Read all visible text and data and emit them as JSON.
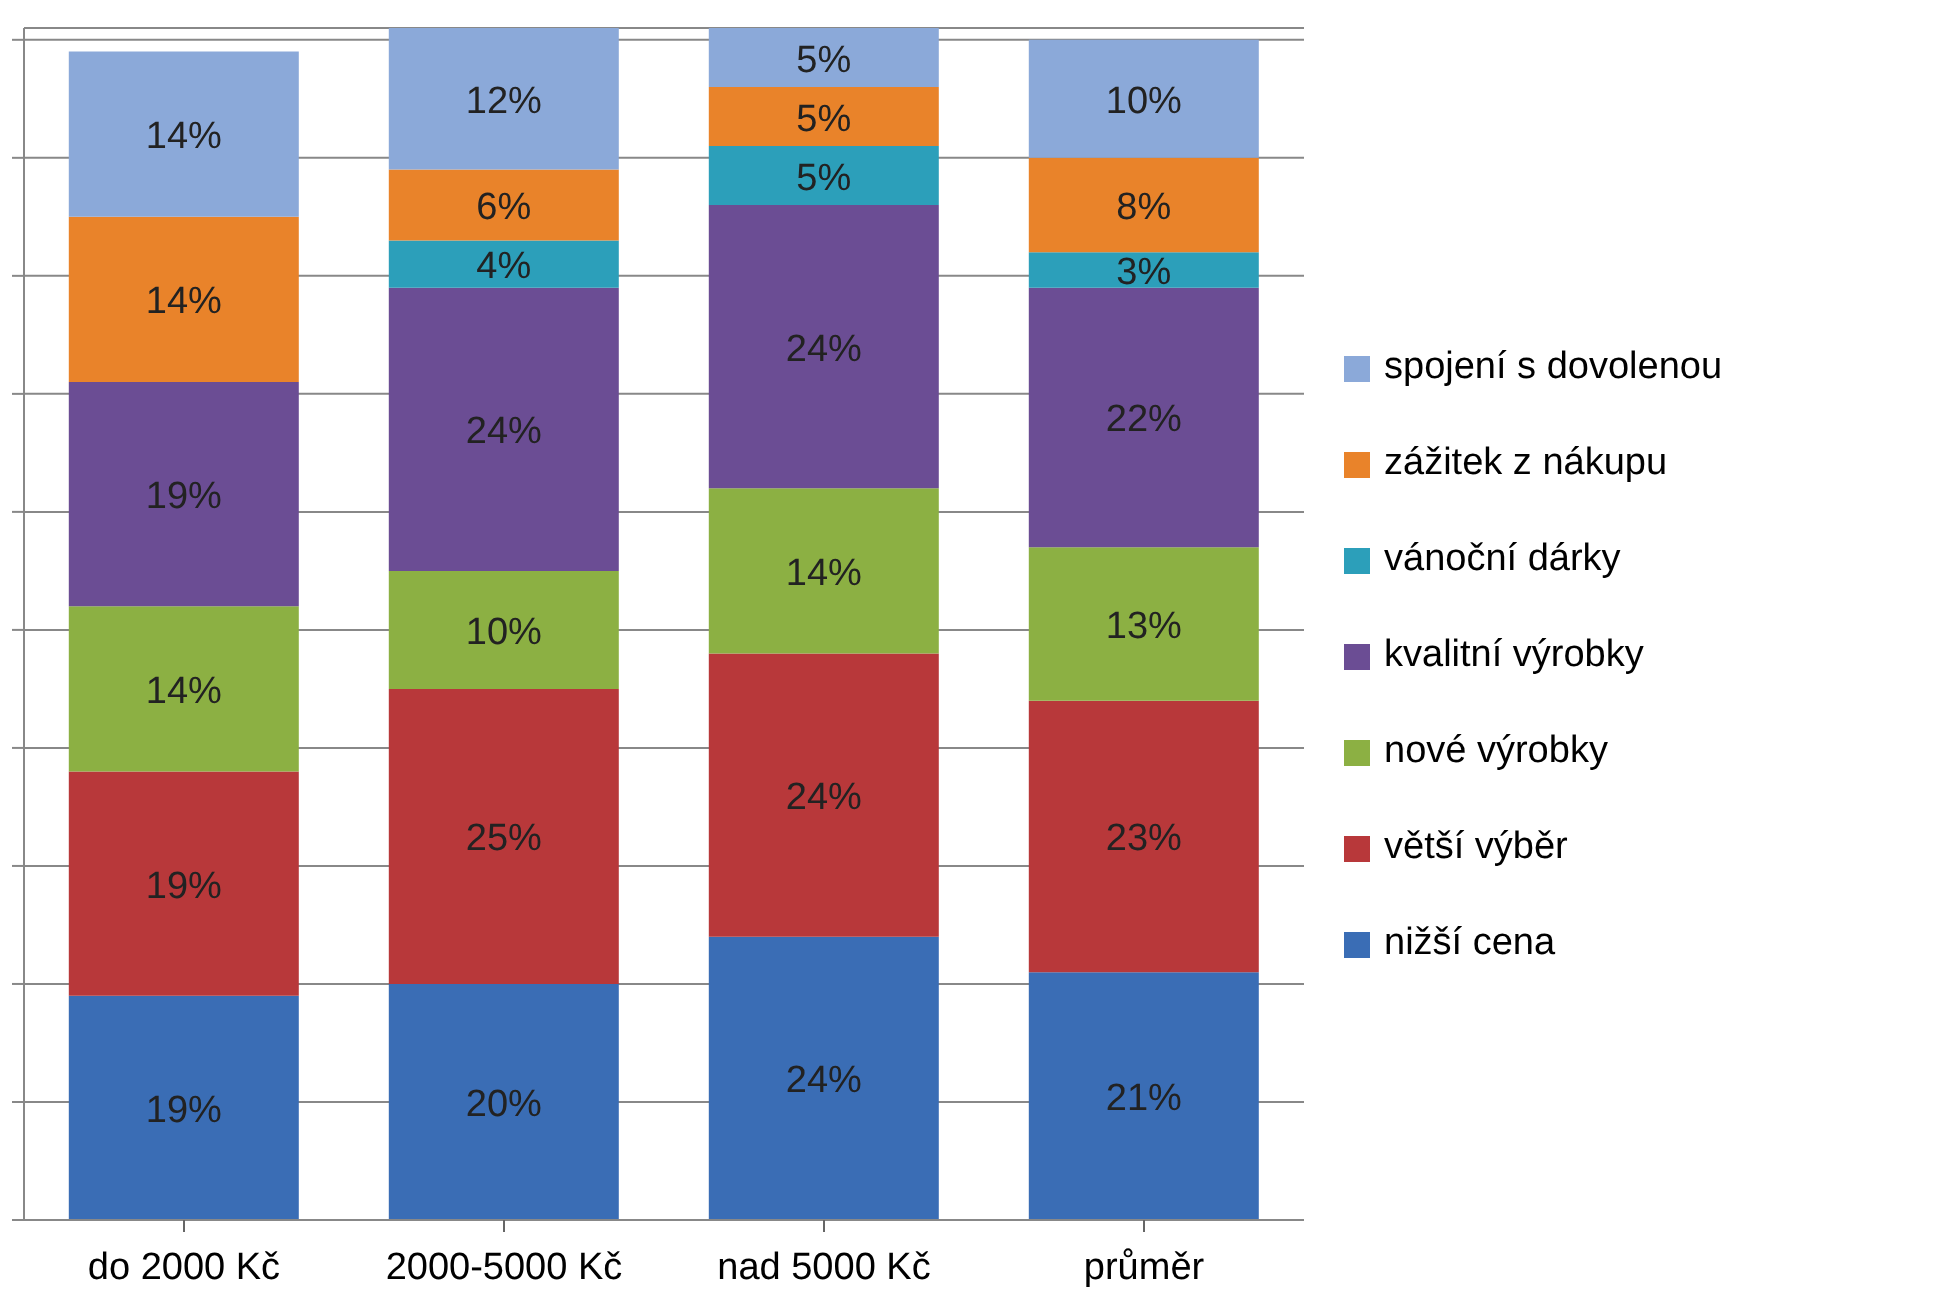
{
  "chart_data": {
    "type": "bar",
    "stacked": true,
    "categories": [
      "do 2000 Kč",
      "2000-5000 Kč",
      "nad 5000 Kč",
      "průměr"
    ],
    "series": [
      {
        "name": "nižší cena",
        "color": "#3a6db5",
        "values": [
          19,
          20,
          24,
          21
        ],
        "value_labels": [
          "19%",
          "20%",
          "24%",
          "21%"
        ]
      },
      {
        "name": "větší výběr",
        "color": "#b8383a",
        "values": [
          19,
          25,
          24,
          23
        ],
        "value_labels": [
          "19%",
          "25%",
          "24%",
          "23%"
        ]
      },
      {
        "name": "nové výrobky",
        "color": "#8cb043",
        "values": [
          14,
          10,
          14,
          13
        ],
        "value_labels": [
          "14%",
          "10%",
          "14%",
          "13%"
        ]
      },
      {
        "name": "kvalitní výrobky",
        "color": "#6b4d94",
        "values": [
          19,
          24,
          24,
          22
        ],
        "value_labels": [
          "19%",
          "24%",
          "24%",
          "22%"
        ]
      },
      {
        "name": "vánoční dárky",
        "color": "#2c9fba",
        "values": [
          null,
          4,
          5,
          3
        ],
        "value_labels": [
          null,
          "4%",
          "5%",
          "3%"
        ]
      },
      {
        "name": "zážitek z nákupu",
        "color": "#e9832a",
        "values": [
          14,
          6,
          5,
          8
        ],
        "value_labels": [
          "14%",
          "6%",
          "5%",
          "8%"
        ]
      },
      {
        "name": "spojení s dovolenou",
        "color": "#8ba9d9",
        "values": [
          14,
          12,
          5,
          10
        ],
        "value_labels": [
          "14%",
          "12%",
          "5%",
          "10%"
        ]
      }
    ],
    "ylim": [
      0,
      101
    ],
    "yticks": [
      {
        "value": 0,
        "label": null
      },
      {
        "value": 10,
        "label": null
      },
      {
        "value": 20,
        "label": null
      },
      {
        "value": 30,
        "label": null
      },
      {
        "value": 40,
        "label": null
      },
      {
        "value": 50,
        "label": null
      },
      {
        "value": 60,
        "label": null
      },
      {
        "value": 70,
        "label": null
      },
      {
        "value": 80,
        "label": null
      },
      {
        "value": 90,
        "label": null
      },
      {
        "value": 100,
        "label": null
      }
    ],
    "tick_labels": "x",
    "grid": "y",
    "legend": "right"
  }
}
